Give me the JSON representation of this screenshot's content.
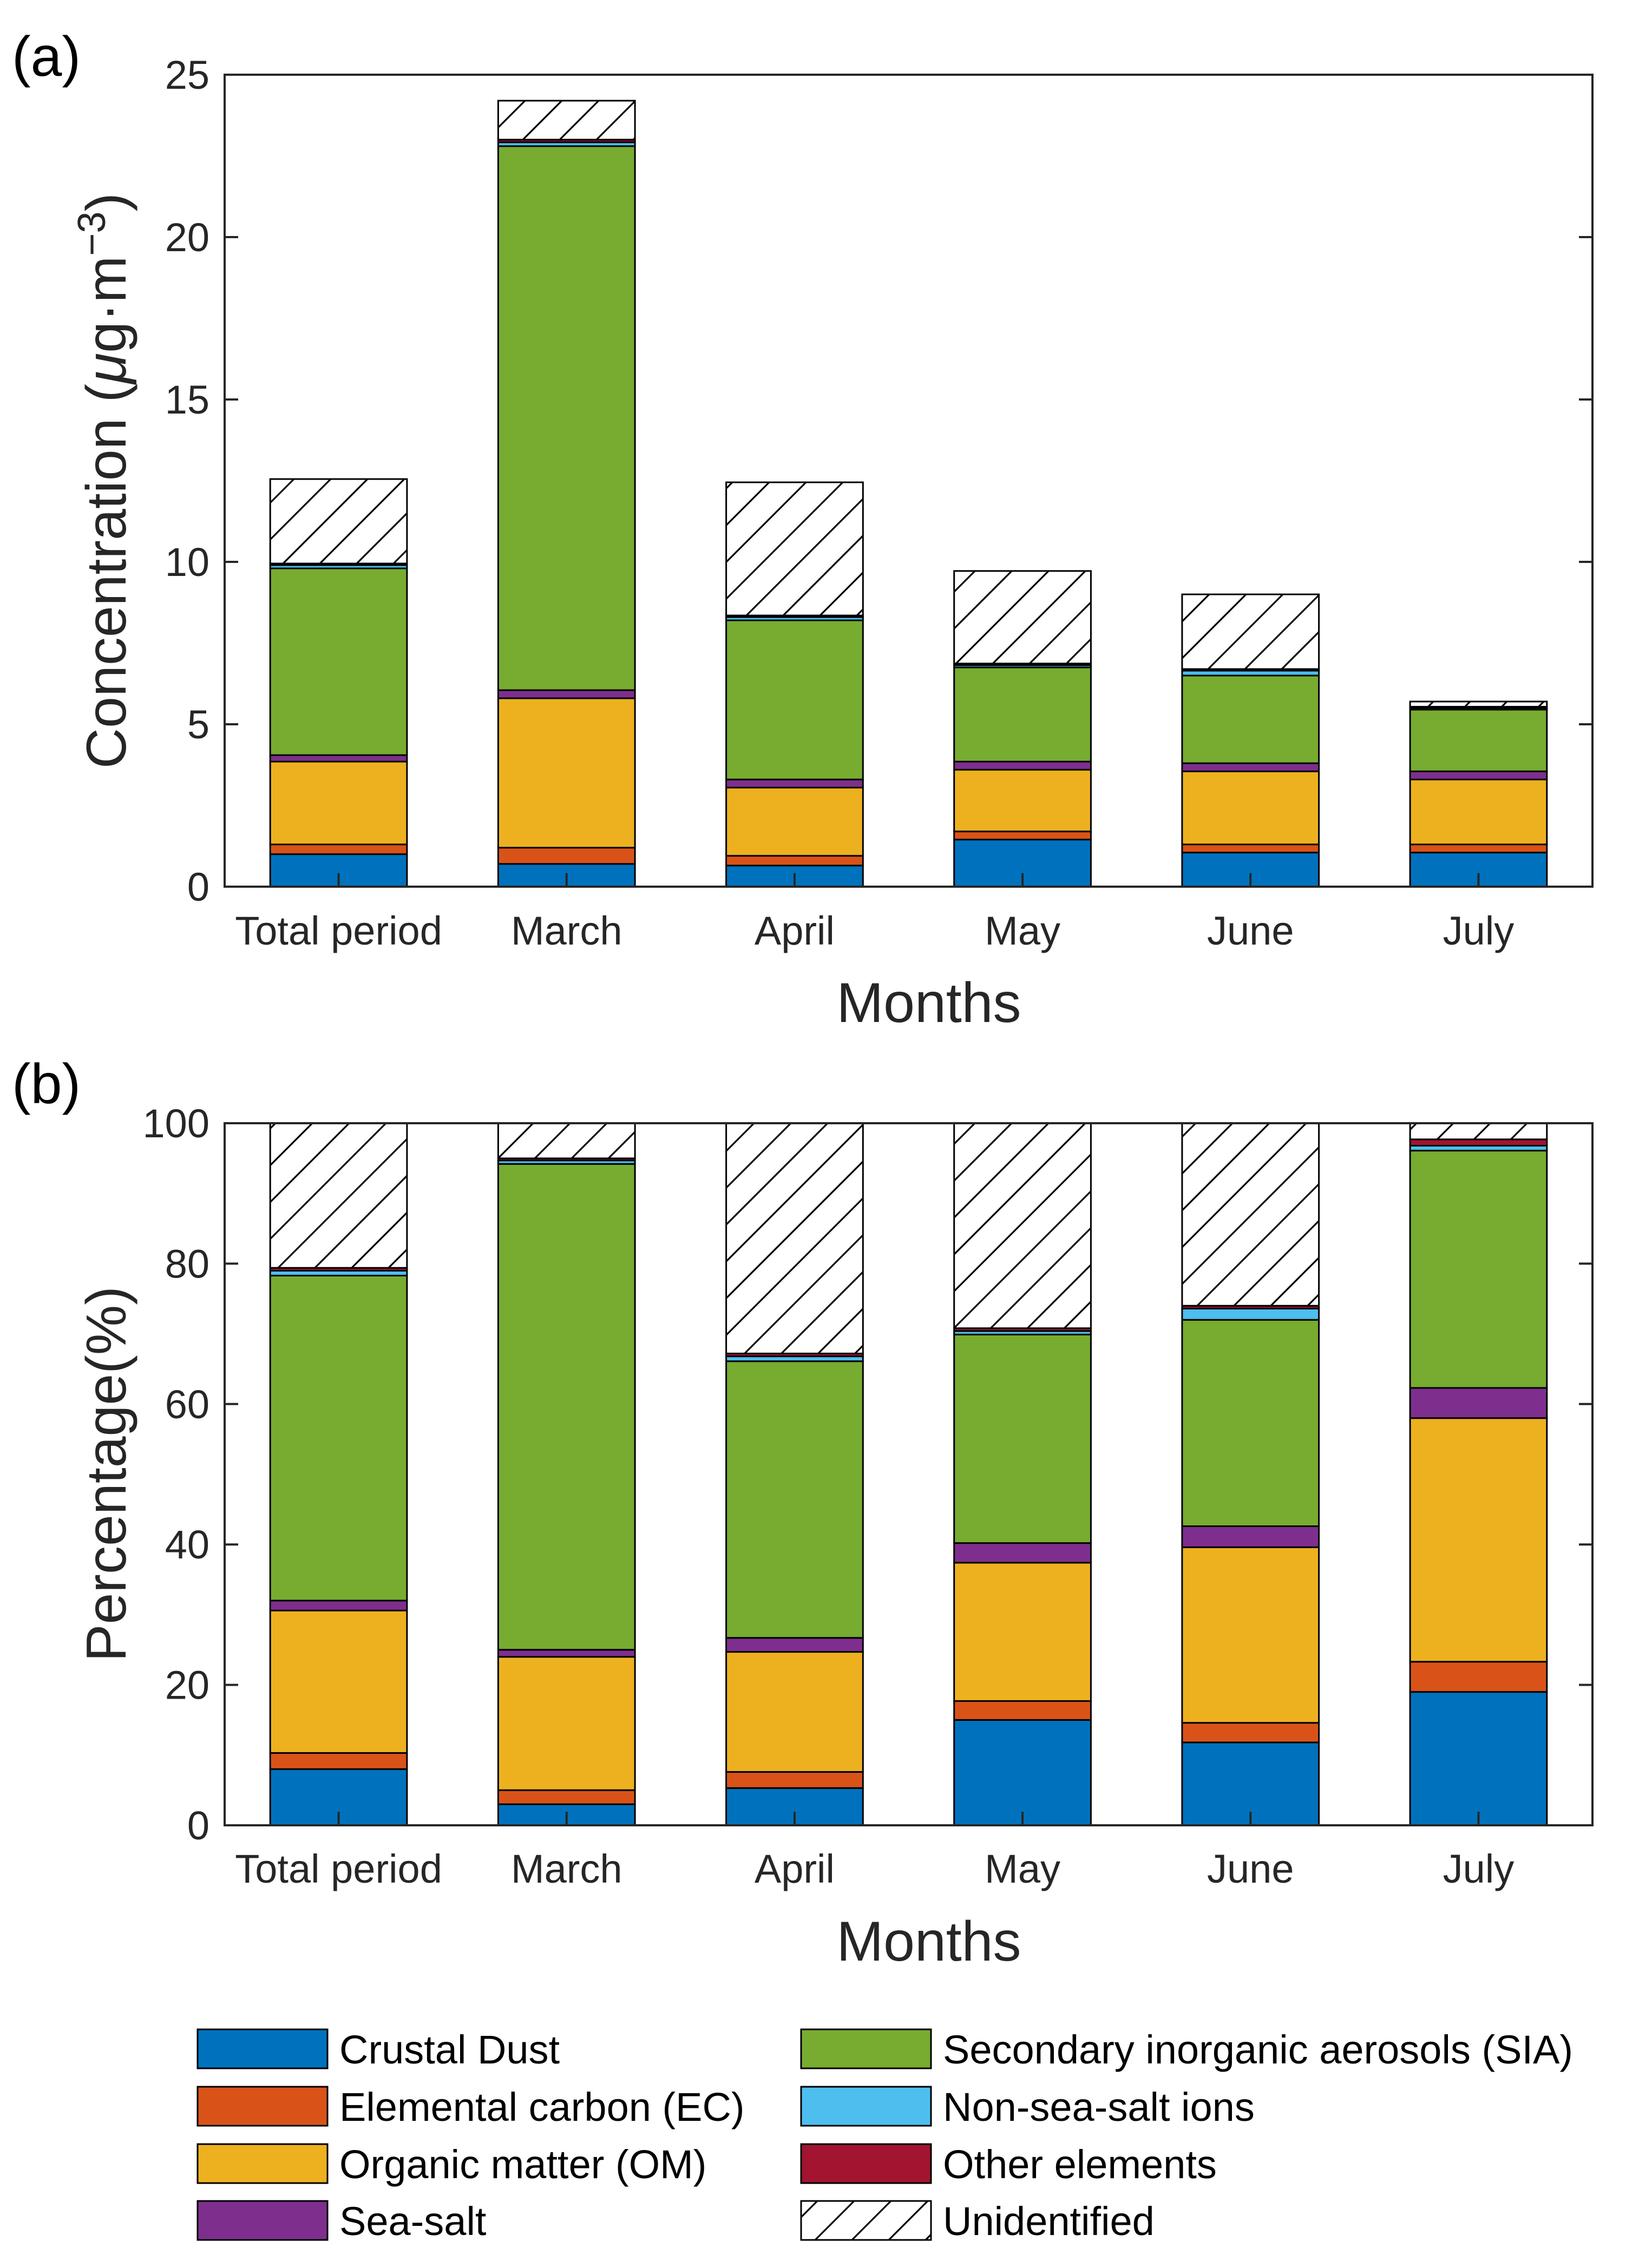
{
  "chart_data": [
    {
      "panel_label": "(a)",
      "type": "stacked-bar",
      "categories": [
        "Total period",
        "March",
        "April",
        "May",
        "June",
        "July"
      ],
      "xlabel": "Months",
      "ylabel": "Concentration (μg·m−3)",
      "ylabel_text": "Concentration (",
      "ylabel_mu": "μ",
      "ylabel_unit": "g·m",
      "ylabel_exp": "−3",
      "ylabel_close": ")",
      "ylim": [
        0,
        25
      ],
      "yticks": [
        "0",
        "5",
        "10",
        "15",
        "20",
        "25"
      ],
      "series": [
        {
          "name": "Crustal Dust",
          "values": [
            1.0,
            0.7,
            0.65,
            1.45,
            1.05,
            1.05
          ]
        },
        {
          "name": "Elemental carbon (EC)",
          "values": [
            0.3,
            0.5,
            0.3,
            0.25,
            0.25,
            0.25
          ]
        },
        {
          "name": "Organic matter (OM)",
          "values": [
            2.55,
            4.6,
            2.1,
            1.9,
            2.25,
            2.0
          ]
        },
        {
          "name": "Sea-salt",
          "values": [
            0.2,
            0.25,
            0.25,
            0.25,
            0.25,
            0.25
          ]
        },
        {
          "name": "Secondary inorganic aerosols (SIA)",
          "values": [
            5.75,
            16.75,
            4.9,
            2.9,
            2.7,
            1.9
          ]
        },
        {
          "name": "Non-sea-salt ions",
          "values": [
            0.1,
            0.12,
            0.1,
            0.07,
            0.15,
            0.04
          ]
        },
        {
          "name": "Other elements",
          "values": [
            0.05,
            0.08,
            0.05,
            0.05,
            0.05,
            0.05
          ]
        },
        {
          "name": "Unidentified",
          "values": [
            2.6,
            1.2,
            4.1,
            2.85,
            2.3,
            0.16
          ]
        }
      ]
    },
    {
      "panel_label": "(b)",
      "type": "stacked-bar",
      "categories": [
        "Total period",
        "March",
        "April",
        "May",
        "June",
        "July"
      ],
      "xlabel": "Months",
      "ylabel": "Percentage(%)",
      "ylim": [
        0,
        100
      ],
      "yticks": [
        "0",
        "20",
        "40",
        "60",
        "80",
        "100"
      ],
      "series": [
        {
          "name": "Crustal Dust",
          "values": [
            8.0,
            3.0,
            5.3,
            15.0,
            11.8,
            19.0
          ]
        },
        {
          "name": "Elemental carbon (EC)",
          "values": [
            2.3,
            2.0,
            2.3,
            2.7,
            2.8,
            4.3
          ]
        },
        {
          "name": "Organic matter (OM)",
          "values": [
            20.3,
            19.0,
            17.1,
            19.7,
            25.0,
            34.7
          ]
        },
        {
          "name": "Sea-salt",
          "values": [
            1.4,
            1.0,
            2.0,
            2.8,
            3.0,
            4.3
          ]
        },
        {
          "name": "Secondary inorganic aerosols (SIA)",
          "values": [
            46.3,
            69.2,
            39.4,
            29.7,
            29.4,
            33.8
          ]
        },
        {
          "name": "Non-sea-salt ions",
          "values": [
            0.7,
            0.5,
            0.7,
            0.5,
            1.6,
            0.7
          ]
        },
        {
          "name": "Other elements",
          "values": [
            0.4,
            0.3,
            0.4,
            0.4,
            0.4,
            0.9
          ]
        },
        {
          "name": "Unidentified",
          "values": [
            20.6,
            5.0,
            32.8,
            29.2,
            26.0,
            2.3
          ]
        }
      ]
    }
  ],
  "legend": {
    "items": [
      {
        "label": "Crustal Dust",
        "color": "#0072BD"
      },
      {
        "label": "Elemental carbon (EC)",
        "color": "#D95319"
      },
      {
        "label": "Organic matter (OM)",
        "color": "#EDB120"
      },
      {
        "label": "Sea-salt",
        "color": "#7E2F8E"
      },
      {
        "label": "Secondary inorganic aerosols (SIA)",
        "color": "#77AC30"
      },
      {
        "label": "Non-sea-salt ions",
        "color": "#4DBEEE"
      },
      {
        "label": "Other elements",
        "color": "#A2142F"
      },
      {
        "label": "Unidentified",
        "color": "hatch"
      }
    ]
  }
}
